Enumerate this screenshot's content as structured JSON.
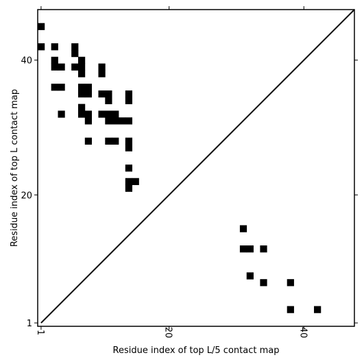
{
  "chart_data": {
    "type": "heatmap",
    "title": "",
    "xlabel": "Residue index of top L/5 contact map",
    "ylabel": "Residue index of top L contact map",
    "xlim": [
      0.5,
      47.5
    ],
    "ylim": [
      0.5,
      47.5
    ],
    "xticks": [
      1,
      20,
      40
    ],
    "yticks": [
      1,
      20,
      40
    ],
    "diagonal_line": true,
    "cell_color": "#000000",
    "upper_triangle_cells": [
      [
        1,
        45
      ],
      [
        1,
        42
      ],
      [
        3,
        42
      ],
      [
        6,
        42
      ],
      [
        6,
        41
      ],
      [
        3,
        40
      ],
      [
        7,
        40
      ],
      [
        3,
        39
      ],
      [
        4,
        39
      ],
      [
        6,
        39
      ],
      [
        7,
        39
      ],
      [
        10,
        39
      ],
      [
        7,
        38
      ],
      [
        10,
        38
      ],
      [
        3,
        36
      ],
      [
        4,
        36
      ],
      [
        7,
        36
      ],
      [
        8,
        36
      ],
      [
        7,
        35
      ],
      [
        8,
        35
      ],
      [
        10,
        35
      ],
      [
        11,
        35
      ],
      [
        14,
        35
      ],
      [
        11,
        34
      ],
      [
        14,
        34
      ],
      [
        7,
        33
      ],
      [
        7,
        32
      ],
      [
        8,
        32
      ],
      [
        10,
        32
      ],
      [
        11,
        32
      ],
      [
        12,
        32
      ],
      [
        4,
        32
      ],
      [
        8,
        31
      ],
      [
        11,
        31
      ],
      [
        12,
        31
      ],
      [
        13,
        31
      ],
      [
        14,
        31
      ],
      [
        8,
        28
      ],
      [
        11,
        28
      ],
      [
        12,
        28
      ],
      [
        14,
        28
      ],
      [
        14,
        27
      ],
      [
        14,
        24
      ],
      [
        14,
        22
      ],
      [
        15,
        22
      ],
      [
        14,
        21
      ]
    ],
    "lower_triangle_cells": [
      [
        31,
        15
      ],
      [
        31,
        12
      ],
      [
        32,
        12
      ],
      [
        34,
        12
      ],
      [
        32,
        8
      ],
      [
        34,
        7
      ],
      [
        38,
        7
      ],
      [
        38,
        3
      ],
      [
        42,
        3
      ]
    ]
  }
}
